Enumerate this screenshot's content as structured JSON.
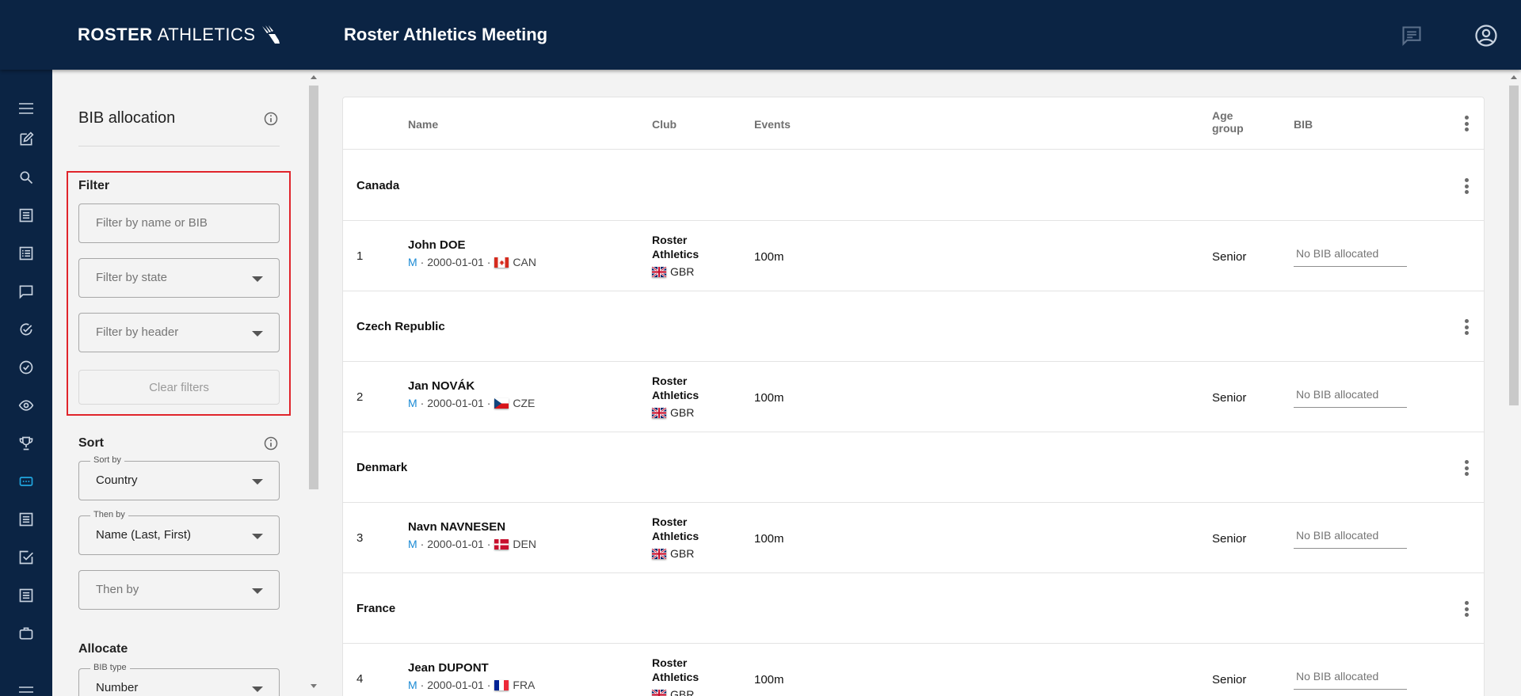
{
  "header": {
    "logo_bold": "ROSTER",
    "logo_light": "ATHLETICS",
    "title": "Roster Athletics Meeting",
    "icons": [
      "chat-icon",
      "account-circle-icon"
    ]
  },
  "rail": {
    "items": [
      "menu-icon",
      "edit-icon",
      "search-icon",
      "list-icon",
      "list-alt-icon",
      "comment-icon",
      "check-circle-icon",
      "check-circle-outline-icon",
      "eye-icon",
      "trophy-icon",
      "bib-icon",
      "list-icon",
      "checkbox-icon",
      "list-icon",
      "briefcase-icon"
    ]
  },
  "panel": {
    "title": "BIB allocation",
    "filter": {
      "label": "Filter",
      "name_placeholder": "Filter by name or BIB",
      "state_placeholder": "Filter by state",
      "header_placeholder": "Filter by header",
      "clear_label": "Clear filters"
    },
    "sort": {
      "label": "Sort",
      "sort_by_label": "Sort by",
      "sort_by_value": "Country",
      "then_by_label": "Then by",
      "then_by_value": "Name (Last, First)",
      "then_by2_placeholder": "Then by"
    },
    "allocate": {
      "label": "Allocate",
      "bib_type_label": "BIB type",
      "bib_type_value": "Number"
    }
  },
  "table": {
    "headers": {
      "name": "Name",
      "club": "Club",
      "events": "Events",
      "age_group_1": "Age",
      "age_group_2": "group",
      "bib": "BIB"
    },
    "groups": [
      {
        "country": "Canada",
        "athlete": {
          "num": "1",
          "name": "John DOE",
          "sex": "M",
          "dob": "· 2000-01-01 ·",
          "nat": "CAN",
          "club_1": "Roster",
          "club_2": "Athletics",
          "club_nat": "GBR",
          "event": "100m",
          "age": "Senior",
          "bib": "No BIB allocated"
        }
      },
      {
        "country": "Czech Republic",
        "athlete": {
          "num": "2",
          "name": "Jan NOVÁK",
          "sex": "M",
          "dob": "· 2000-01-01 ·",
          "nat": "CZE",
          "club_1": "Roster",
          "club_2": "Athletics",
          "club_nat": "GBR",
          "event": "100m",
          "age": "Senior",
          "bib": "No BIB allocated"
        }
      },
      {
        "country": "Denmark",
        "athlete": {
          "num": "3",
          "name": "Navn NAVNESEN",
          "sex": "M",
          "dob": "· 2000-01-01 ·",
          "nat": "DEN",
          "club_1": "Roster",
          "club_2": "Athletics",
          "club_nat": "GBR",
          "event": "100m",
          "age": "Senior",
          "bib": "No BIB allocated"
        }
      },
      {
        "country": "France",
        "athlete": {
          "num": "4",
          "name": "Jean DUPONT",
          "sex": "M",
          "dob": "· 2000-01-01 ·",
          "nat": "FRA",
          "club_1": "Roster",
          "club_2": "Athletics",
          "club_nat": "GBR",
          "event": "100m",
          "age": "Senior",
          "bib": "No BIB allocated"
        }
      }
    ]
  },
  "colors": {
    "navy": "#0b2444",
    "highlight": "#e0242b",
    "accent": "#1a8ad4"
  }
}
